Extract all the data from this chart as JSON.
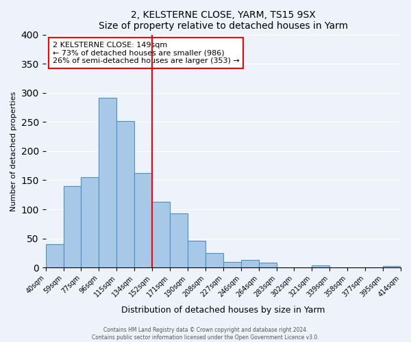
{
  "title": "2, KELSTERNE CLOSE, YARM, TS15 9SX",
  "subtitle": "Size of property relative to detached houses in Yarm",
  "xlabel": "Distribution of detached houses by size in Yarm",
  "ylabel": "Number of detached properties",
  "bin_labels": [
    "40sqm",
    "59sqm",
    "77sqm",
    "96sqm",
    "115sqm",
    "134sqm",
    "152sqm",
    "171sqm",
    "190sqm",
    "208sqm",
    "227sqm",
    "246sqm",
    "264sqm",
    "283sqm",
    "302sqm",
    "321sqm",
    "339sqm",
    "358sqm",
    "377sqm",
    "395sqm",
    "414sqm"
  ],
  "bar_heights": [
    40,
    140,
    155,
    292,
    251,
    162,
    113,
    93,
    46,
    25,
    10,
    13,
    8,
    0,
    0,
    4,
    0,
    0,
    0,
    3
  ],
  "bar_color": "#a8c8e8",
  "bar_edge_color": "#4a90c4",
  "reference_line_x": 6,
  "annotation_title": "2 KELSTERNE CLOSE: 149sqm",
  "annotation_line1": "← 73% of detached houses are smaller (986)",
  "annotation_line2": "26% of semi-detached houses are larger (353) →",
  "ylim": [
    0,
    400
  ],
  "yticks": [
    0,
    50,
    100,
    150,
    200,
    250,
    300,
    350,
    400
  ],
  "footer_line1": "Contains HM Land Registry data © Crown copyright and database right 2024.",
  "footer_line2": "Contains public sector information licensed under the Open Government Licence v3.0.",
  "background_color": "#eef2fb",
  "plot_background": "#eef2fb"
}
